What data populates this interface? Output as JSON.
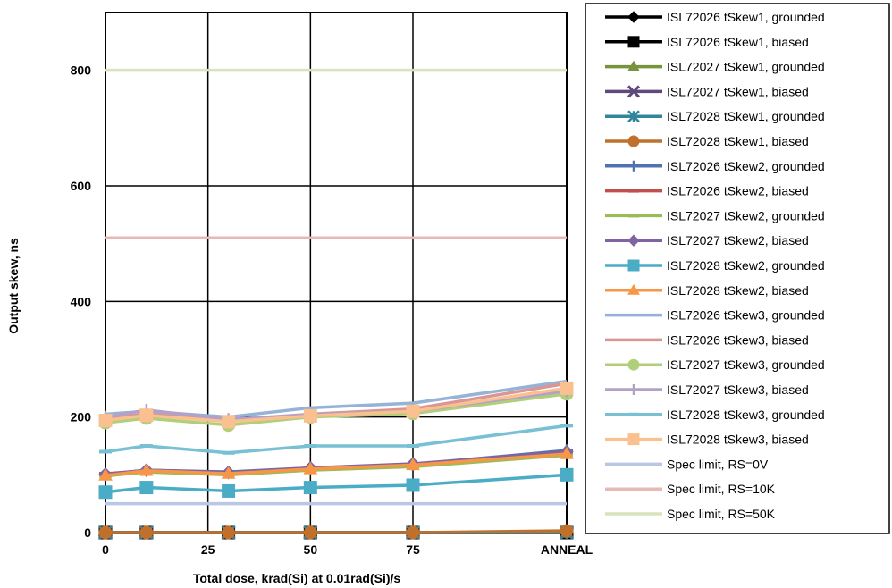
{
  "chart_data": {
    "type": "line",
    "xlabel": "Total dose, krad(Si) at 0.01rad(Si)/s",
    "ylabel": "Output skew, ns",
    "x_tick_labels": [
      "0",
      "25",
      "50",
      "75",
      "ANNEAL"
    ],
    "y_ticks": [
      0,
      200,
      400,
      600,
      800
    ],
    "xlim": [
      0,
      112.5
    ],
    "ylim": [
      0,
      900
    ],
    "grid": true,
    "legend_position": "right",
    "x": [
      0,
      10,
      30,
      50,
      75,
      112.5
    ],
    "series": [
      {
        "name": "ISL72026 tSkew1, grounded",
        "color": "#000000",
        "marker": "diamond",
        "values": [
          0,
          0,
          0,
          0,
          0,
          0
        ]
      },
      {
        "name": "ISL72026 tSkew1, biased",
        "color": "#000000",
        "marker": "square",
        "values": [
          0,
          0,
          0,
          0,
          0,
          0
        ]
      },
      {
        "name": "ISL72027 tSkew1, grounded",
        "color": "#77933c",
        "marker": "triangle",
        "values": [
          0,
          0,
          0,
          0,
          0,
          0
        ]
      },
      {
        "name": "ISL72027 tSkew1, biased",
        "color": "#604a7b",
        "marker": "x",
        "values": [
          0,
          0,
          0,
          0,
          0,
          0
        ]
      },
      {
        "name": "ISL72028 tSkew1, grounded",
        "color": "#31859c",
        "marker": "asterisk",
        "values": [
          0,
          0,
          0,
          0,
          0,
          0
        ]
      },
      {
        "name": "ISL72028 tSkew1, biased",
        "color": "#c0702b",
        "marker": "circle",
        "values": [
          0,
          0,
          0,
          0,
          0,
          3
        ]
      },
      {
        "name": "ISL72026 tSkew2, grounded",
        "color": "#4f72b0",
        "marker": "plus",
        "values": [
          100,
          108,
          105,
          112,
          118,
          142
        ]
      },
      {
        "name": "ISL72026 tSkew2, biased",
        "color": "#c0504d",
        "marker": "dash",
        "values": [
          102,
          107,
          103,
          110,
          116,
          138
        ]
      },
      {
        "name": "ISL72027 tSkew2, grounded",
        "color": "#9bbb59",
        "marker": "dash",
        "values": [
          98,
          105,
          100,
          108,
          114,
          134
        ]
      },
      {
        "name": "ISL72027 tSkew2, biased",
        "color": "#8064a2",
        "marker": "diamond",
        "values": [
          101,
          108,
          104,
          112,
          119,
          140
        ]
      },
      {
        "name": "ISL72028 tSkew2, grounded",
        "color": "#4bacc6",
        "marker": "square",
        "values": [
          70,
          78,
          72,
          78,
          82,
          100
        ]
      },
      {
        "name": "ISL72028 tSkew2, biased",
        "color": "#f79646",
        "marker": "triangle",
        "values": [
          99,
          107,
          102,
          110,
          117,
          136
        ]
      },
      {
        "name": "ISL72026 tSkew3, grounded",
        "color": "#95b3d7",
        "marker": "none",
        "values": [
          205,
          210,
          200,
          216,
          224,
          262
        ]
      },
      {
        "name": "ISL72026 tSkew3, biased",
        "color": "#d99694",
        "marker": "none",
        "values": [
          198,
          205,
          195,
          205,
          214,
          258
        ]
      },
      {
        "name": "ISL72027 tSkew3, grounded",
        "color": "#b1cf79",
        "marker": "circle",
        "values": [
          190,
          198,
          186,
          200,
          206,
          240
        ]
      },
      {
        "name": "ISL72027 tSkew3, biased",
        "color": "#b3a2c7",
        "marker": "plus",
        "values": [
          200,
          212,
          196,
          204,
          210,
          245
        ]
      },
      {
        "name": "ISL72028 tSkew3, grounded",
        "color": "#78c0d4",
        "marker": "dash",
        "values": [
          140,
          150,
          138,
          150,
          150,
          185
        ]
      },
      {
        "name": "ISL72028 tSkew3, biased",
        "color": "#fac08f",
        "marker": "square",
        "values": [
          194,
          203,
          192,
          202,
          210,
          250
        ]
      },
      {
        "name": "Spec limit, RS=0V",
        "color": "#b9c7e4",
        "marker": "none",
        "values": [
          50,
          50,
          50,
          50,
          50,
          50
        ]
      },
      {
        "name": "Spec limit, RS=10K",
        "color": "#e6b9b8",
        "marker": "none",
        "values": [
          510,
          510,
          510,
          510,
          510,
          510
        ]
      },
      {
        "name": "Spec limit, RS=50K",
        "color": "#d7e4bd",
        "marker": "none",
        "values": [
          800,
          800,
          800,
          800,
          800,
          800
        ]
      }
    ]
  }
}
